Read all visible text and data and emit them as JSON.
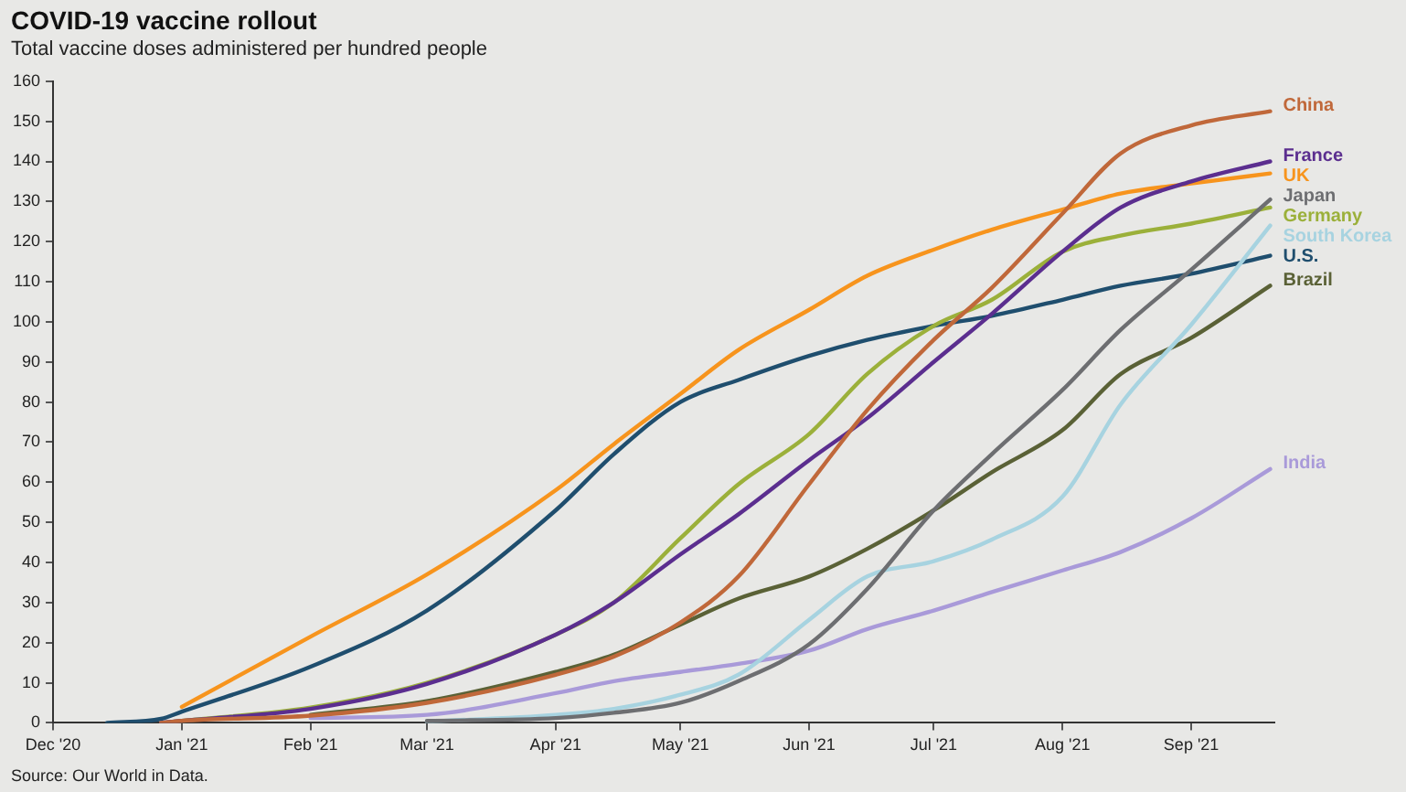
{
  "chart_data": {
    "type": "line",
    "title": "COVID-19 vaccine rollout",
    "subtitle": "Total vaccine doses administered per hundred people",
    "annotations": [
      "Source: Our World in Data."
    ],
    "x": [
      "2020-12-14",
      "2020-12-27",
      "2021-01-01",
      "2021-02-01",
      "2021-03-01",
      "2021-04-01",
      "2021-04-15",
      "2021-05-01",
      "2021-05-15",
      "2021-06-01",
      "2021-06-15",
      "2021-07-01",
      "2021-07-15",
      "2021-08-01",
      "2021-08-15",
      "2021-09-01",
      "2021-09-20"
    ],
    "series": [
      {
        "name": "China",
        "color": "#c0683a",
        "values": [
          null,
          0,
          0.5,
          1.8,
          5,
          12,
          16.5,
          25,
          36.5,
          59.5,
          78,
          95.5,
          108.5,
          127,
          142,
          149,
          152.5
        ]
      },
      {
        "name": "France",
        "color": "#5b2e8f",
        "values": [
          null,
          0,
          0.5,
          3.5,
          9.7,
          22,
          30,
          42,
          52,
          65.5,
          76,
          90,
          102,
          117.5,
          128.5,
          135,
          140
        ]
      },
      {
        "name": "UK",
        "color": "#f7941d",
        "values": [
          null,
          null,
          4,
          21.5,
          37,
          58,
          69.5,
          82,
          93,
          103,
          111.5,
          118,
          123,
          128,
          132,
          134.5,
          137
        ]
      },
      {
        "name": "Japan",
        "color": "#6d6e71",
        "values": [
          null,
          null,
          null,
          null,
          0.5,
          1.2,
          2.5,
          5,
          10.4,
          19.6,
          33.4,
          53,
          67,
          83,
          98,
          113,
          130.5
        ]
      },
      {
        "name": "Germany",
        "color": "#9bb03a",
        "values": [
          null,
          0,
          0.5,
          3.8,
          10,
          22,
          30,
          46,
          59.5,
          72,
          87,
          99,
          105.5,
          117.5,
          121.5,
          124.5,
          128.5
        ]
      },
      {
        "name": "South Korea",
        "color": "#a7d3e0",
        "values": [
          null,
          null,
          null,
          null,
          0.3,
          2,
          3.5,
          7,
          12,
          25.7,
          36.5,
          40.3,
          45.7,
          56.4,
          79.4,
          99.3,
          124
        ]
      },
      {
        "name": "U.S.",
        "color": "#1f4e6e",
        "values": [
          0,
          1,
          2.8,
          14,
          28,
          53,
          67,
          80,
          85.5,
          91.5,
          95.5,
          99,
          101.5,
          105.5,
          109,
          112,
          116.5
        ]
      },
      {
        "name": "Brazil",
        "color": "#5a6136",
        "values": [
          null,
          null,
          null,
          2,
          5.4,
          12.7,
          17,
          24.5,
          31,
          36.5,
          43.4,
          53,
          62.5,
          73,
          87,
          96,
          109
        ]
      },
      {
        "name": "India",
        "color": "#a99ad9",
        "values": [
          null,
          null,
          null,
          1.2,
          2,
          7.4,
          10.4,
          12.7,
          14.7,
          18,
          23.4,
          28,
          32.6,
          38,
          42.6,
          51,
          63.3
        ]
      }
    ],
    "xlim": [
      "2020-12-01",
      "2021-09-21"
    ],
    "xticks": [
      {
        "value": "2020-12-01",
        "label": "Dec '20"
      },
      {
        "value": "2021-01-01",
        "label": "Jan '21"
      },
      {
        "value": "2021-02-01",
        "label": "Feb '21"
      },
      {
        "value": "2021-03-01",
        "label": "Mar '21"
      },
      {
        "value": "2021-04-01",
        "label": "Apr '21"
      },
      {
        "value": "2021-05-01",
        "label": "May '21"
      },
      {
        "value": "2021-06-01",
        "label": "Jun '21"
      },
      {
        "value": "2021-07-01",
        "label": "Jul '21"
      },
      {
        "value": "2021-08-01",
        "label": "Aug '21"
      },
      {
        "value": "2021-09-01",
        "label": "Sep '21"
      }
    ],
    "ylim": [
      0,
      160
    ],
    "yticks": [
      0,
      10,
      20,
      30,
      40,
      50,
      60,
      70,
      80,
      90,
      100,
      110,
      120,
      130,
      140,
      150,
      160
    ],
    "grid": false,
    "legend": false
  }
}
